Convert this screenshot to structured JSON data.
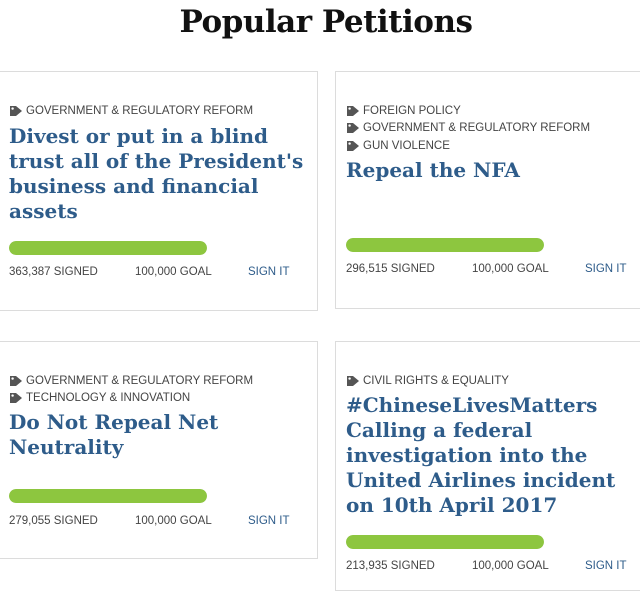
{
  "page": {
    "title": "Popular Petitions"
  },
  "colors": {
    "title_link": "#2e5c8a",
    "progress_fill": "#8dc63f",
    "tag_text": "#444444",
    "card_border": "#dcdcdc"
  },
  "icons": {
    "tag": "tag-icon"
  },
  "petitions": [
    {
      "tags": [
        "GOVERNMENT & REGULATORY REFORM"
      ],
      "title": "Divest or put in a blind trust all of the President's business and financial assets",
      "signed": "363,387 SIGNED",
      "goal": "100,000 GOAL",
      "progress": 1.0,
      "sign_label": "SIGN IT"
    },
    {
      "tags": [
        "FOREIGN POLICY",
        "GOVERNMENT & REGULATORY REFORM",
        "GUN VIOLENCE"
      ],
      "title": "Repeal the NFA",
      "signed": "296,515 SIGNED",
      "goal": "100,000 GOAL",
      "progress": 1.0,
      "sign_label": "SIGN IT"
    },
    {
      "tags": [
        "GOVERNMENT & REGULATORY REFORM",
        "TECHNOLOGY & INNOVATION"
      ],
      "title": "Do Not Repeal Net Neutrality",
      "signed": "279,055 SIGNED",
      "goal": "100,000 GOAL",
      "progress": 1.0,
      "sign_label": "SIGN IT"
    },
    {
      "tags": [
        "CIVIL RIGHTS & EQUALITY"
      ],
      "title": "#ChineseLivesMatters Calling a federal investigation into the United Airlines incident on 10th April 2017",
      "signed": "213,935 SIGNED",
      "goal": "100,000 GOAL",
      "progress": 1.0,
      "sign_label": "SIGN IT"
    }
  ]
}
